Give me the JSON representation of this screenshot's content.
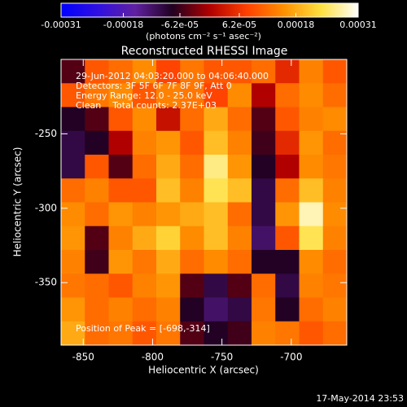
{
  "chart_data": {
    "type": "heatmap",
    "title": "Reconstructed RHESSI Image",
    "xlabel": "Heliocentric X (arcsec)",
    "ylabel": "Heliocentric Y (arcsec)",
    "xlim": [
      -866,
      -660
    ],
    "ylim": [
      -392,
      -200
    ],
    "xticks": [
      -850,
      -800,
      -750,
      -700
    ],
    "yticks": [
      -250,
      -300,
      -350
    ],
    "annotations": [
      "29-Jun-2012 04:03:20.000 to 04:06:40.000",
      "Detectors: 3F 5F 6F 7F 8F 9F, Att 0",
      "Energy Range: 12.0 - 25.0 keV",
      "Clean    Total counts: 2.37E+03"
    ],
    "peak_label": "Position of Peak = [-698,-314]",
    "footer": "17-May-2014 23:53",
    "colorbar": {
      "label": "(photons cm⁻² s⁻¹ asec⁻²)",
      "lim": [
        -0.00031,
        0.00031
      ],
      "ticks": [
        -0.00031,
        -0.00018,
        {
          "value": -6.2e-05,
          "label": "-6.2e-05"
        },
        {
          "value": 6.2e-05,
          "label": "6.2e-05"
        },
        0.00018,
        0.00031
      ],
      "colors": [
        "#0000ff",
        "#3010e0",
        "#6020a0",
        "#200020",
        "#b00000",
        "#ff4000",
        "#ff9000",
        "#ffe040",
        "#ffffff"
      ]
    },
    "z": [
      [
        -5e-05,
        0.0001,
        0.00012,
        0.00015,
        8e-05,
        0.00013,
        0.0001,
        0.0001,
        0.00012,
        5e-05,
        0.00014,
        0.0001
      ],
      [
        0.0001,
        0.00013,
        0.00015,
        0.0001,
        0.00014,
        0.00013,
        8e-05,
        0.00015,
        0,
        0.00012,
        0.00015,
        0.00012
      ],
      [
        -8e-05,
        -5e-05,
        0.0001,
        0.00015,
        2e-05,
        0.00012,
        0.00018,
        0.00012,
        -5e-05,
        0.0001,
        0.00014,
        0.00015
      ],
      [
        -0.0001,
        -8e-05,
        0,
        0.00014,
        0.00016,
        0.0001,
        0.0002,
        0.00014,
        -6e-05,
        5e-05,
        0.00016,
        0.00012
      ],
      [
        -0.0001,
        0.0001,
        -5e-05,
        0.00012,
        0.00018,
        0.00012,
        0.00026,
        0.00016,
        -8e-05,
        0,
        0.00015,
        0.00013
      ],
      [
        0.00012,
        0.00014,
        0.0001,
        0.0001,
        0.0002,
        0.00014,
        0.00024,
        0.0002,
        -0.0001,
        0.00012,
        0.0002,
        0.00014
      ],
      [
        0.00015,
        0.00012,
        0.00016,
        0.00014,
        0.00016,
        0.00018,
        0.0002,
        0.00012,
        -0.0001,
        0.00016,
        0.00028,
        0.00015
      ],
      [
        0.00016,
        -5e-05,
        0.00014,
        0.00018,
        0.00022,
        0.00015,
        0.0002,
        0.00014,
        -0.00012,
        0.0001,
        0.00024,
        0.00014
      ],
      [
        0.00014,
        -6e-05,
        0.00016,
        0.00013,
        0.00018,
        0.00012,
        0.00015,
        0.00012,
        -8e-05,
        -8e-05,
        0.00015,
        0.00012
      ],
      [
        0.00013,
        0.00012,
        0.0001,
        0.00014,
        0.00016,
        -5e-05,
        -0.0001,
        -5e-05,
        0.00012,
        -0.0001,
        0.00014,
        0.00013
      ],
      [
        0.00016,
        0.00012,
        0.00014,
        0.00012,
        0.00014,
        -8e-05,
        -0.00012,
        -0.0001,
        0.00013,
        -8e-05,
        0.00012,
        0.00014
      ],
      [
        0.00018,
        0.00012,
        0.00013,
        0.0001,
        0.00013,
        -5e-05,
        -8e-05,
        -6e-05,
        0.00014,
        0.00013,
        0.0001,
        0.00012
      ]
    ]
  }
}
